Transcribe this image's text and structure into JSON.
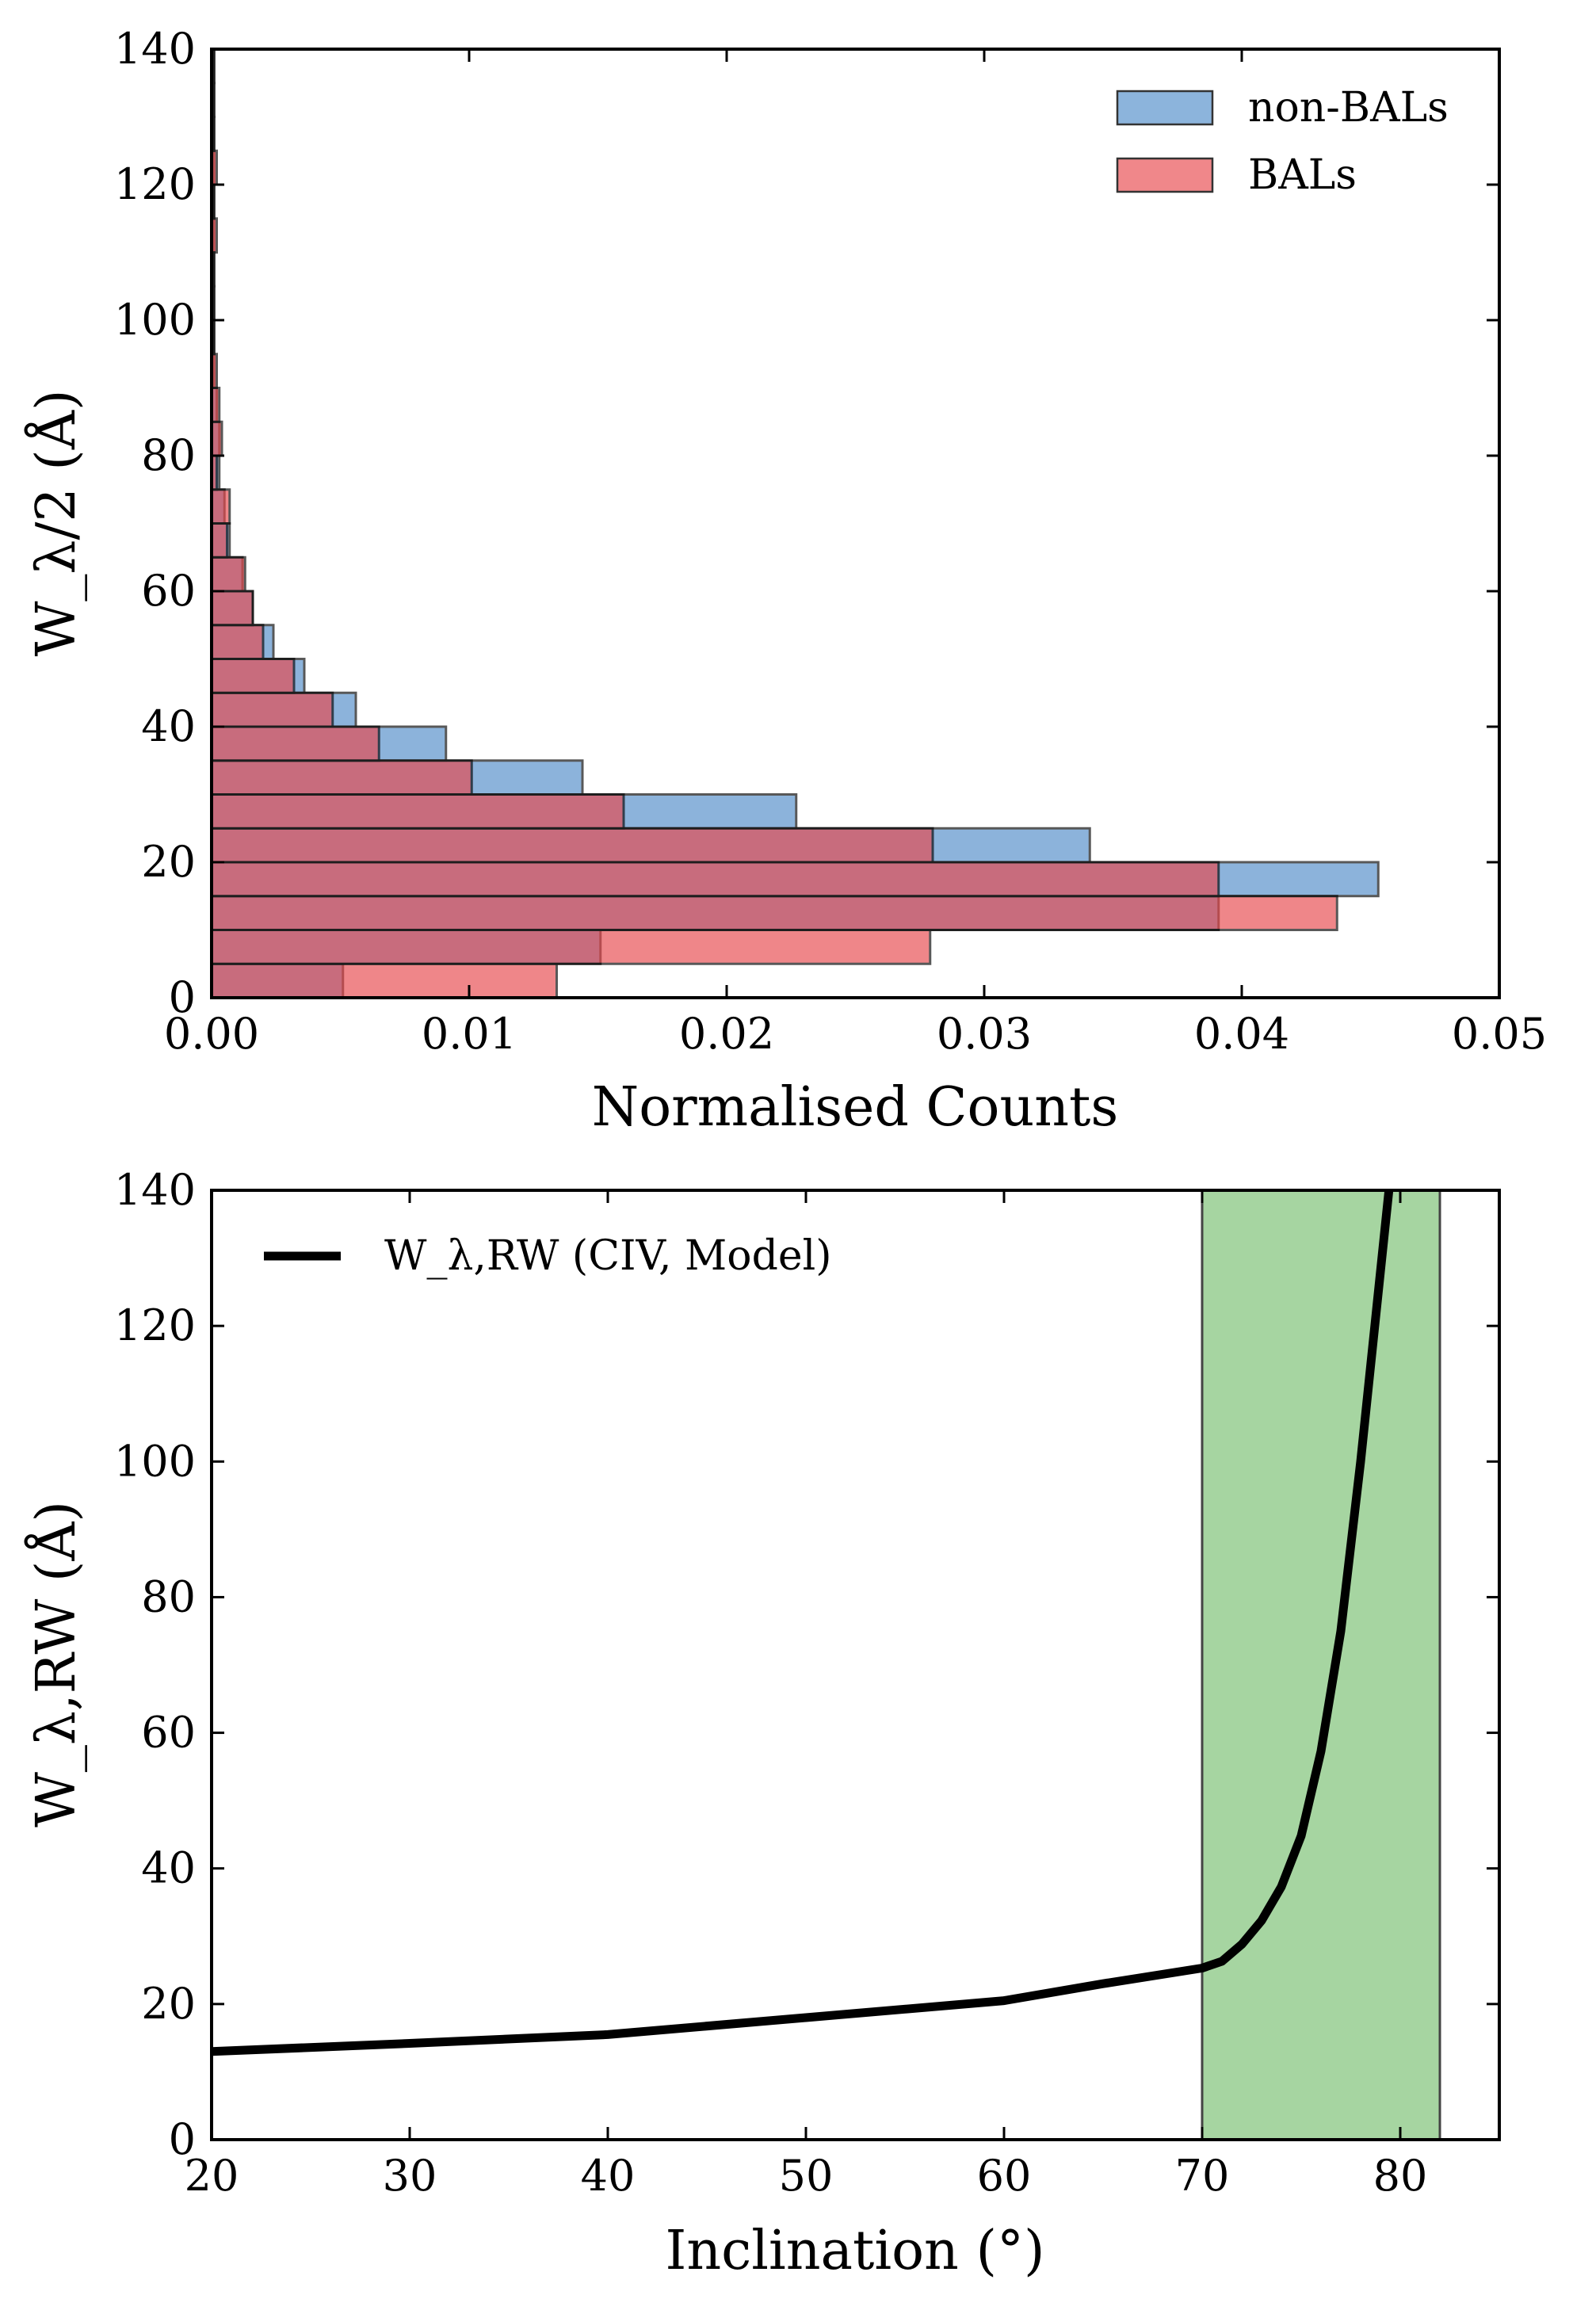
{
  "chart_data": [
    {
      "type": "bar",
      "orientation": "horizontal",
      "xlabel": "Normalised Counts",
      "ylabel": "W_λ/2 (Å)",
      "xlim": [
        0.0,
        0.05
      ],
      "ylim": [
        0,
        140
      ],
      "xticks": [
        "0.00",
        "0.01",
        "0.02",
        "0.03",
        "0.04",
        "0.05"
      ],
      "yticks": [
        "0",
        "20",
        "40",
        "60",
        "80",
        "100",
        "120",
        "140"
      ],
      "legend_position": "top-right",
      "bin_width": 5,
      "bin_edges": [
        0,
        5,
        10,
        15,
        20,
        25,
        30,
        35,
        40,
        45,
        50,
        55,
        60,
        65,
        70,
        75,
        80,
        85,
        90,
        95,
        100,
        105,
        110,
        115,
        120,
        125,
        130,
        135
      ],
      "series": [
        {
          "name": "non-BALs",
          "color": "#4f8cc9",
          "values": [
            0.0051,
            0.0151,
            0.0391,
            0.0453,
            0.0341,
            0.0227,
            0.0144,
            0.0091,
            0.0056,
            0.0036,
            0.0024,
            0.0016,
            0.0012,
            0.0007,
            0.0005,
            0.0003,
            0.0003,
            0.0002,
            0.0001,
            0.0001,
            0.0001,
            0.0001,
            0.0001,
            0.0001,
            0.0001,
            0.0001,
            0.0001,
            0.0001
          ]
        },
        {
          "name": "BALs",
          "color": "#e8474b",
          "values": [
            0.0134,
            0.0279,
            0.0437,
            0.0391,
            0.028,
            0.016,
            0.0101,
            0.0065,
            0.0047,
            0.0032,
            0.002,
            0.0016,
            0.0013,
            0.0006,
            0.0007,
            0.0002,
            0.0004,
            0.0003,
            0.0002,
            0.0001,
            0.0001,
            0.0001,
            0.0002,
            0.0001,
            0.0002,
            0.0001,
            0.0001,
            0.0001
          ]
        }
      ]
    },
    {
      "type": "line",
      "xlabel": "Inclination (°)",
      "ylabel": "W_λ,RW (Å)",
      "xlim": [
        20,
        85
      ],
      "ylim": [
        0,
        140
      ],
      "xticks": [
        "20",
        "30",
        "40",
        "50",
        "60",
        "70",
        "80"
      ],
      "yticks": [
        "0",
        "20",
        "40",
        "60",
        "80",
        "100",
        "120",
        "140"
      ],
      "legend_position": "top-left",
      "shaded_region": {
        "x": [
          70,
          82
        ],
        "color": "#a6d5a1"
      },
      "series": [
        {
          "name": "W_λ,RW (CIV, Model)",
          "color": "#000000",
          "x": [
            20,
            30,
            40,
            50,
            60,
            65,
            70,
            71,
            72,
            73,
            74,
            75,
            76,
            77,
            78,
            79,
            79.5
          ],
          "values": [
            13,
            14.2,
            15.5,
            18,
            20.5,
            23,
            25.3,
            26.3,
            28.8,
            32.3,
            37.3,
            44.8,
            57.3,
            75,
            100,
            128,
            142
          ]
        }
      ]
    }
  ]
}
